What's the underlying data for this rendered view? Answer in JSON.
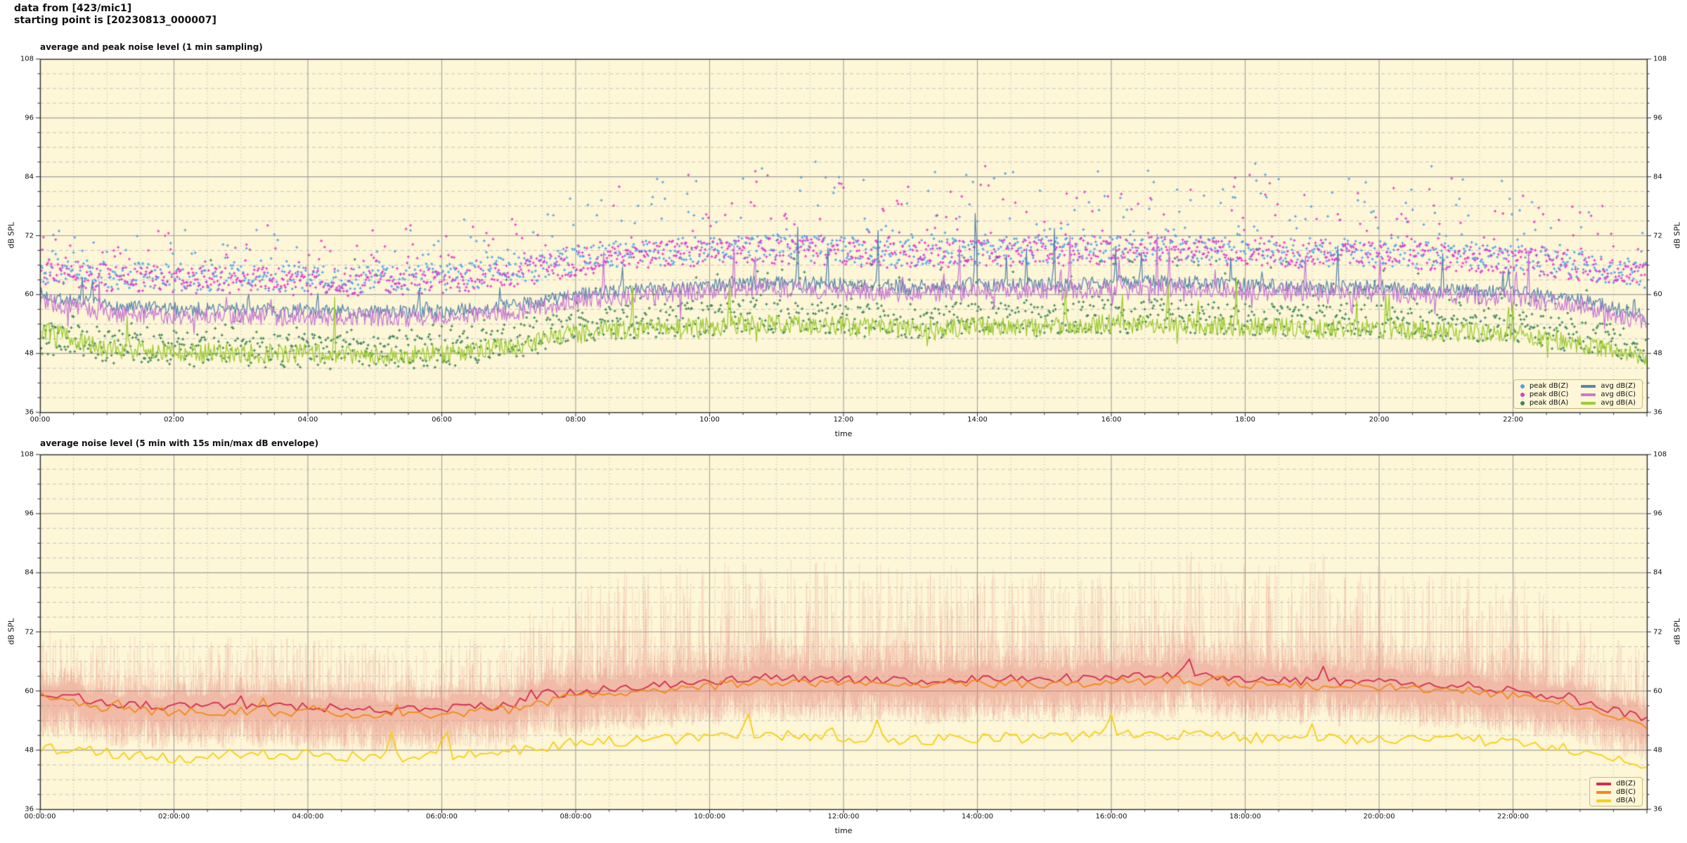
{
  "header": {
    "line1": "data from [423/mic1]",
    "line2": "starting point is [20230813_000007]"
  },
  "colors": {
    "figure_bg": "#ffffff",
    "plot_bg": "#fdf6d7",
    "grid_major": "#a0a0a0",
    "grid_minor_dash": "#c2c2c2",
    "grid_minor_dot": "#c8c8c8",
    "spine": "#2b2b2b",
    "tick": "#2b2b2b",
    "text": "#111111",
    "legend_bg": "#fdf6d7",
    "legend_border": "#c9b97e"
  },
  "chart_data": [
    {
      "type": "line+scatter",
      "title": "average and peak noise level (1 min sampling)",
      "xlabel": "time",
      "ylabel": "dB SPL",
      "sampling": "1 min",
      "x_range_hours": [
        0,
        24
      ],
      "ylim": [
        36,
        108
      ],
      "y_ticks": [
        36,
        48,
        60,
        72,
        84,
        96,
        108
      ],
      "y_minor_step_db": 3,
      "x_tick_hours": [
        0,
        2,
        4,
        6,
        8,
        10,
        12,
        14,
        16,
        18,
        20,
        22
      ],
      "x_tick_labels": [
        "00:00",
        "02:00",
        "04:00",
        "06:00",
        "08:00",
        "10:00",
        "12:00",
        "14:00",
        "16:00",
        "18:00",
        "20:00",
        "22:00"
      ],
      "x_minor_step_minutes": 30,
      "grid": "major solid, minor dashed/dotted",
      "legend_position": "lower right",
      "scatter_series": [
        {
          "name": "peak dB(Z)",
          "color": "#4fa2ea",
          "marker": "plus",
          "hourly_center": [
            65,
            64,
            63.5,
            63.5,
            63,
            63,
            63.5,
            64.5,
            67,
            68.5,
            69,
            69.5,
            69,
            68.5,
            69,
            69,
            69.5,
            69.5,
            69,
            68.5,
            68.5,
            68,
            67.5,
            66,
            64
          ],
          "spread": 5.5,
          "tail_night": 10,
          "tail_day": 17,
          "rare_extra": 8,
          "max": 91
        },
        {
          "name": "peak dB(C)",
          "color": "#e736ce",
          "marker": "plus",
          "hourly_center": [
            64.5,
            63.5,
            63,
            63,
            62.5,
            62.5,
            63,
            64,
            66.5,
            68,
            68.5,
            69,
            68.5,
            68,
            68.5,
            68.5,
            69,
            69,
            68.5,
            68,
            68,
            67.5,
            67,
            65.5,
            63.5
          ],
          "spread": 5.5,
          "tail_night": 10,
          "tail_day": 16,
          "rare_extra": 8,
          "max": 89
        },
        {
          "name": "peak dB(A)",
          "color": "#3c8758",
          "marker": "plus",
          "hourly_center": [
            51.5,
            49.5,
            49,
            48.5,
            48.5,
            48,
            48.5,
            50,
            53.5,
            54.5,
            55,
            55.5,
            55,
            54.5,
            55,
            55,
            55.5,
            55.5,
            55,
            54.5,
            54.5,
            54,
            53.5,
            51.5,
            49.5
          ],
          "spread": 7,
          "tail_night": 6,
          "tail_day": 11,
          "rare_extra": 22,
          "max": 88
        }
      ],
      "line_series": [
        {
          "name": "avg dB(Z)",
          "color": "#5887ae",
          "hourly": [
            60,
            57.5,
            57,
            57,
            56.5,
            56.5,
            56.5,
            57.5,
            60,
            61,
            62,
            62.5,
            62,
            61.5,
            62,
            62,
            62.5,
            62.5,
            62,
            61.5,
            61.5,
            61,
            60.5,
            59,
            55.5
          ],
          "jitter": 1.5,
          "spike_rate": 0.015,
          "spike_amp_night": 6,
          "spike_amp_day": 11
        },
        {
          "name": "avg dB(C)",
          "color": "#ca79d4",
          "hourly": [
            58.8,
            56.2,
            55.7,
            55.7,
            55.2,
            55.2,
            55.3,
            56.3,
            58.8,
            59.8,
            60.8,
            61.2,
            60.7,
            60.2,
            60.7,
            60.7,
            61.2,
            61.2,
            60.7,
            60.2,
            60.2,
            59.8,
            59.3,
            57.8,
            54.3
          ],
          "jitter": 1.8,
          "spike_rate": 0.015,
          "spike_amp_night": 5,
          "spike_amp_day": 10,
          "dip_rate": 0.02,
          "dip_amp": 4
        },
        {
          "name": "avg dB(A)",
          "color": "#9ecc33",
          "hourly": [
            53,
            49,
            48.5,
            48,
            48,
            47.5,
            48,
            49.5,
            52,
            53,
            53.5,
            54,
            53.5,
            53,
            53.5,
            53.5,
            54,
            54,
            53.5,
            53,
            53,
            52.5,
            52,
            50,
            47
          ],
          "jitter": 2.0,
          "spike_rate": 0.012,
          "spike_amp_night": 12,
          "spike_amp_day": 9,
          "dip_rate": 0.012,
          "dip_amp": 3
        }
      ]
    },
    {
      "type": "line+envelope",
      "title": "average noise level (5 min with 15s min/max dB envelope)",
      "xlabel": "time",
      "ylabel": "dB SPL",
      "sampling": "5 min",
      "x_range_hours": [
        0,
        24
      ],
      "ylim": [
        36,
        108
      ],
      "y_ticks": [
        36,
        48,
        60,
        72,
        84,
        96,
        108
      ],
      "y_minor_step_db": 3,
      "x_tick_hours": [
        0,
        2,
        4,
        6,
        8,
        10,
        12,
        14,
        16,
        18,
        20,
        22
      ],
      "x_tick_labels": [
        "00:00:00",
        "02:00:00",
        "04:00:00",
        "06:00:00",
        "08:00:00",
        "10:00:00",
        "12:00:00",
        "14:00:00",
        "16:00:00",
        "18:00:00",
        "20:00:00",
        "22:00:00"
      ],
      "x_minor_step_minutes": 30,
      "legend_position": "lower right",
      "envelope": {
        "name": "15s min/max envelope",
        "color": "#e8877d",
        "alpha": 0.26,
        "lower_spread": [
          2.5,
          6
        ],
        "upper_spread_night": [
          2,
          12
        ],
        "upper_spread_day": [
          2,
          22
        ]
      },
      "line_series": [
        {
          "name": "dB(Z)",
          "color": "#d62a50",
          "hourly": [
            60,
            57.5,
            56.8,
            57,
            56.8,
            56.2,
            56.5,
            57.2,
            60,
            61,
            62,
            63,
            62.3,
            62,
            62.5,
            62.5,
            62.8,
            63.2,
            62.5,
            62,
            61.8,
            61.5,
            60.2,
            58,
            54.3
          ],
          "jitter": 0.9,
          "spike_rate": 0.03,
          "spike_amp_night": 2.5,
          "spike_amp_day": 4
        },
        {
          "name": "dB(C)",
          "color": "#f28a18",
          "hourly": [
            59,
            56.4,
            55.7,
            55.9,
            55.7,
            55.1,
            55.4,
            56.1,
            59,
            60,
            61,
            62,
            61.3,
            61,
            61.5,
            61.5,
            61.8,
            62.2,
            61.4,
            61,
            60.8,
            60.5,
            59.2,
            57,
            53.2
          ],
          "jitter": 0.9,
          "spike_rate": 0.03,
          "spike_amp_night": 2.5,
          "spike_amp_day": 3.5
        },
        {
          "name": "dB(A)",
          "color": "#f5d010",
          "hourly": [
            48.5,
            47.5,
            46.2,
            47.5,
            47,
            46.5,
            47,
            47.8,
            49.5,
            50,
            50.5,
            51,
            50.5,
            50,
            50.5,
            50.5,
            51,
            51,
            50.5,
            50.5,
            50,
            50.5,
            49.5,
            48,
            44.5
          ],
          "jitter": 1.1,
          "spike_rate": 0.02,
          "spike_amp_night": 6,
          "spike_amp_day": 4.5
        }
      ]
    }
  ]
}
